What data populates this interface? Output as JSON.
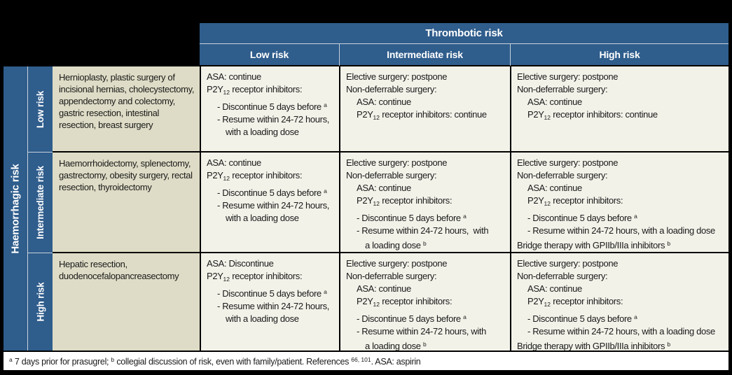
{
  "colors": {
    "outer_black": "#000000",
    "header_blue": "#2F5D8C",
    "light_line": "#C9D2DC",
    "desc_beige": "#DEDCC6",
    "cell_bg": "#F3F2E9",
    "footer_bg": "#FFFFFF",
    "border_black": "#000000",
    "text_dark": "#1A1A1A"
  },
  "header": {
    "thrombotic_title": "Thrombotic risk",
    "columns": [
      "Low risk",
      "Intermediate risk",
      "High risk"
    ]
  },
  "left": {
    "haemorrhagic_title": "Haemorrhagic risk"
  },
  "rows": [
    {
      "label": "Low risk",
      "description": "Hernioplasty, plastic surgery of incisional hernias, cholecystectomy, appendectomy and colectomy, gastric resection, intestinal resection, breast surgery",
      "cells": {
        "low": [
          {
            "i": 0,
            "t": "ASA: continue"
          },
          {
            "i": 0,
            "t": "P2Y~12~ receptor inhibitors:"
          },
          {
            "i": 1,
            "t": "- Discontinue 5 days before ^a^"
          },
          {
            "i": 1,
            "t": "- Resume within 24-72 hours,"
          },
          {
            "i": 2,
            "t": "with a loading dose"
          }
        ],
        "intermediate": [
          {
            "i": 0,
            "t": "Elective surgery: postpone"
          },
          {
            "i": 0,
            "t": "Non-deferrable surgery:"
          },
          {
            "i": 1,
            "t": "ASA: continue"
          },
          {
            "i": 1,
            "t": "P2Y~12~ receptor inhibitors: continue"
          }
        ],
        "high": [
          {
            "i": 0,
            "t": "Elective surgery: postpone"
          },
          {
            "i": 0,
            "t": "Non-deferrable surgery:"
          },
          {
            "i": 1,
            "t": "ASA: continue"
          },
          {
            "i": 1,
            "t": "P2Y~12~ receptor inhibitors: continue"
          }
        ]
      }
    },
    {
      "label": "Intermediate risk",
      "description": "Haemorrhoidectomy, splenectomy, gastrectomy, obesity surgery, rectal resection, thyroidectomy",
      "cells": {
        "low": [
          {
            "i": 0,
            "t": "ASA: continue"
          },
          {
            "i": 0,
            "t": "P2Y~12~ receptor inhibitors:"
          },
          {
            "i": 1,
            "t": "- Discontinue 5 days before ^a^"
          },
          {
            "i": 1,
            "t": "- Resume within 24-72 hours,"
          },
          {
            "i": 2,
            "t": "with a loading dose"
          }
        ],
        "intermediate": [
          {
            "i": 0,
            "t": "Elective surgery: postpone"
          },
          {
            "i": 0,
            "t": "Non-deferrable surgery:"
          },
          {
            "i": 1,
            "t": "ASA: continue"
          },
          {
            "i": 1,
            "t": "P2Y~12~ receptor inhibitors:"
          },
          {
            "i": 1,
            "t": "- Discontinue 5 days before ^a^"
          },
          {
            "i": 1,
            "t": "- Resume within 24-72 hours,  with"
          },
          {
            "i": 2,
            "t": "a loading dose ^b^"
          }
        ],
        "high": [
          {
            "i": 0,
            "t": "Elective surgery: postpone"
          },
          {
            "i": 0,
            "t": "Non-deferrable surgery:"
          },
          {
            "i": 1,
            "t": "ASA: continue"
          },
          {
            "i": 1,
            "t": "P2Y~12~ receptor inhibitors:"
          },
          {
            "i": 1,
            "t": "- Discontinue 5 days before ^a^"
          },
          {
            "i": 1,
            "t": "- Resume within 24-72 hours, with a loading dose"
          },
          {
            "i": 0,
            "t": "Bridge therapy with GPIIb/IIIa inhibitors ^b^"
          }
        ]
      }
    },
    {
      "label": "High risk",
      "description": "Hepatic resection, duodenocefalopancreasectomy",
      "cells": {
        "low": [
          {
            "i": 0,
            "t": "ASA: Discontinue"
          },
          {
            "i": 0,
            "t": "P2Y~12~ receptor inhibitors:"
          },
          {
            "i": 1,
            "t": "- Discontinue 5 days before ^a^"
          },
          {
            "i": 1,
            "t": "- Resume within 24-72 hours,"
          },
          {
            "i": 2,
            "t": "with a loading dose"
          }
        ],
        "intermediate": [
          {
            "i": 0,
            "t": "Elective surgery: postpone"
          },
          {
            "i": 0,
            "t": "Non-deferrable surgery:"
          },
          {
            "i": 1,
            "t": "ASA: continue"
          },
          {
            "i": 1,
            "t": "P2Y~12~ receptor inhibitors:"
          },
          {
            "i": 1,
            "t": "- Discontinue 5 days before ^a^"
          },
          {
            "i": 1,
            "t": "- Resume within 24-72 hours, with"
          },
          {
            "i": 2,
            "t": "a loading dose ^b^"
          }
        ],
        "high": [
          {
            "i": 0,
            "t": "Elective surgery: postpone"
          },
          {
            "i": 0,
            "t": "Non-deferrable surgery:"
          },
          {
            "i": 1,
            "t": "ASA: continue"
          },
          {
            "i": 1,
            "t": "P2Y~12~ receptor inhibitors:"
          },
          {
            "i": 1,
            "t": "- Discontinue 5 days before ^a^"
          },
          {
            "i": 1,
            "t": "- Resume within 24-72 hours, with a loading dose"
          },
          {
            "i": 0,
            "t": "Bridge therapy with GPIIb/IIIa inhibitors ^b^"
          }
        ]
      }
    }
  ],
  "footnote": "^a^ 7 days prior for prasugrel; ^b^ collegial discussion of risk, even with family/patient. References ^66, 101^. ASA: aspirin"
}
